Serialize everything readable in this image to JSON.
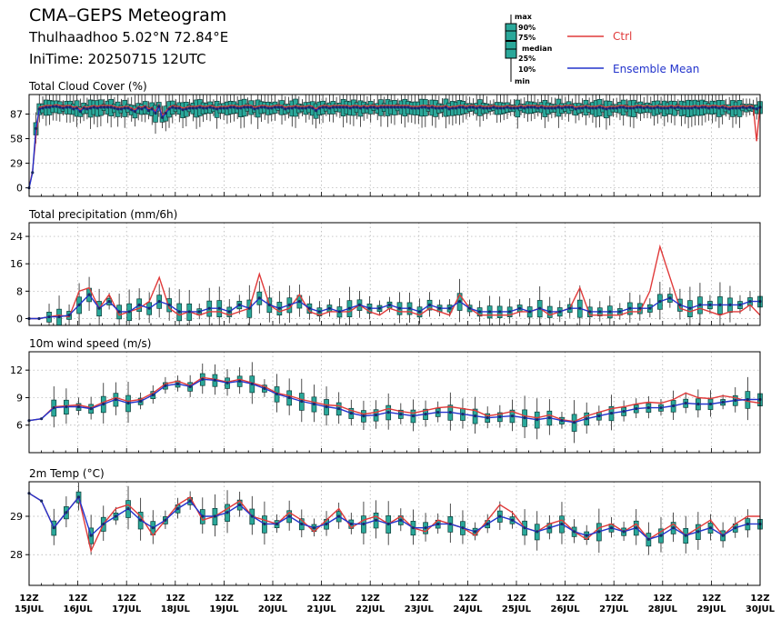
{
  "header": {
    "title": "CMA–GEPS Meteogram",
    "location": "Thulhaadhoo 5.02°N 72.84°E",
    "init_time": "IniTime: 20250715 12UTC"
  },
  "legend": {
    "box_labels": [
      "max",
      "90%",
      "75%",
      "median",
      "25%",
      "10%",
      "min"
    ],
    "ctrl_label": "Ctrl",
    "mean_label": "Ensemble Mean",
    "ctrl_color": "#e03a3a",
    "mean_color": "#2233cc",
    "box_color": "#2aa89a"
  },
  "x_axis": {
    "ticks": [
      {
        "time": "12Z",
        "date": "15JUL"
      },
      {
        "time": "12Z",
        "date": "16JUL"
      },
      {
        "time": "12Z",
        "date": "17JUL"
      },
      {
        "time": "12Z",
        "date": "18JUL"
      },
      {
        "time": "12Z",
        "date": "19JUL"
      },
      {
        "time": "12Z",
        "date": "20JUL"
      },
      {
        "time": "12Z",
        "date": "21JUL"
      },
      {
        "time": "12Z",
        "date": "22JUL"
      },
      {
        "time": "12Z",
        "date": "23JUL"
      },
      {
        "time": "12Z",
        "date": "24JUL"
      },
      {
        "time": "12Z",
        "date": "25JUL"
      },
      {
        "time": "12Z",
        "date": "26JUL"
      },
      {
        "time": "12Z",
        "date": "27JUL"
      },
      {
        "time": "12Z",
        "date": "28JUL"
      },
      {
        "time": "12Z",
        "date": "29JUL"
      },
      {
        "time": "12Z",
        "date": "30JUL"
      }
    ],
    "step_hours": 6
  },
  "chart_data": [
    {
      "type": "line",
      "title": "Total Cloud Cover (%)",
      "ylim": [
        -10,
        110
      ],
      "yticks": [
        0,
        29,
        58,
        87
      ],
      "grid": true,
      "ctrl": [
        0,
        20,
        60,
        95,
        96,
        97,
        97,
        97,
        98,
        97,
        96,
        97,
        97,
        95,
        96,
        92,
        96,
        95,
        96,
        97,
        96,
        97,
        97,
        97,
        97,
        96,
        95,
        95,
        96,
        96,
        94,
        92,
        96,
        95,
        97,
        93,
        95,
        90,
        98,
        85,
        90,
        95,
        97,
        96,
        96,
        94,
        95,
        96,
        96,
        96,
        97,
        96,
        96,
        97,
        96,
        95,
        96,
        96,
        96,
        97,
        97,
        96,
        96,
        97,
        97,
        97,
        95,
        96,
        97,
        97,
        96,
        96,
        97,
        97,
        97,
        95,
        96,
        96,
        97,
        96,
        96,
        96,
        97,
        96,
        93,
        96,
        97,
        97,
        96,
        97,
        97,
        97,
        97,
        97,
        96,
        97,
        97,
        96,
        97,
        96,
        97,
        97,
        96,
        97,
        97,
        97,
        97,
        97,
        97,
        97,
        97,
        97,
        96,
        96,
        96,
        97,
        97,
        96,
        97,
        96,
        96,
        96,
        97,
        95,
        96,
        96,
        97,
        97,
        96,
        97,
        97,
        96,
        97,
        96,
        96,
        96,
        97,
        96,
        96,
        96,
        97,
        96,
        96,
        96,
        97,
        96,
        97,
        97,
        97,
        96,
        97,
        96,
        96,
        96,
        96,
        97,
        96,
        97,
        97,
        97,
        95,
        96,
        96,
        97,
        96,
        96,
        96,
        97,
        96,
        95,
        96,
        96,
        96,
        97,
        97,
        96,
        96,
        96,
        97,
        97,
        96,
        97,
        96,
        96,
        97,
        96,
        96,
        96,
        97,
        96,
        97,
        96,
        96,
        96,
        96,
        97,
        96,
        97,
        97,
        96,
        97,
        97,
        96,
        97,
        96,
        95,
        96,
        96,
        96,
        97,
        96,
        97,
        96,
        55,
        97
      ],
      "mean": [
        0,
        18,
        70,
        93,
        94,
        95,
        95,
        96,
        96,
        95,
        94,
        95,
        95,
        93,
        94,
        90,
        94,
        93,
        94,
        95,
        94,
        95,
        95,
        95,
        95,
        94,
        93,
        93,
        94,
        94,
        92,
        90,
        94,
        93,
        95,
        91,
        93,
        88,
        96,
        83,
        88,
        93,
        95,
        94,
        94,
        92,
        93,
        94,
        94,
        94,
        95,
        94,
        94,
        95,
        94,
        93,
        94,
        94,
        94,
        95,
        95,
        94,
        94,
        95,
        95,
        95,
        93,
        94,
        95,
        95,
        94,
        94,
        95,
        95,
        95,
        93,
        94,
        94,
        95,
        94,
        94,
        94,
        95,
        94,
        91,
        94,
        95,
        95,
        94,
        95,
        95,
        95,
        95,
        95,
        94,
        95,
        95,
        94,
        95,
        94,
        95,
        95,
        94,
        95,
        95,
        95,
        95,
        95,
        95,
        95,
        95,
        95,
        94,
        94,
        94,
        95,
        95,
        94,
        95,
        94,
        94,
        94,
        95,
        93,
        94,
        94,
        95,
        95,
        94,
        95,
        95,
        94,
        95,
        94,
        94,
        94,
        95,
        94,
        94,
        94,
        95,
        94,
        94,
        94,
        95,
        94,
        95,
        95,
        95,
        94,
        95,
        94,
        94,
        94,
        94,
        95,
        94,
        95,
        95,
        95,
        93,
        94,
        94,
        95,
        94,
        94,
        94,
        95,
        94,
        93,
        94,
        94,
        94,
        95,
        95,
        94,
        94,
        94,
        95,
        95,
        94,
        95,
        94,
        94,
        95,
        94,
        94,
        94,
        95,
        94,
        95,
        94,
        94,
        94,
        94,
        95,
        94,
        95,
        95,
        94,
        95,
        95,
        94,
        95,
        94,
        93,
        94,
        94,
        94,
        95,
        94,
        95,
        94,
        93,
        95
      ]
    },
    {
      "type": "line",
      "title": "Total precipitation (mm/6h)",
      "ylim": [
        -2,
        28
      ],
      "yticks": [
        0,
        8,
        16,
        24
      ],
      "grid": true,
      "ctrl": [
        0,
        0,
        0.5,
        1,
        0.5,
        8,
        9,
        3,
        7,
        1,
        2,
        3,
        5,
        12,
        3,
        1,
        2,
        1,
        2,
        2,
        1,
        2,
        3,
        13,
        4,
        2,
        3,
        7,
        2,
        1,
        2,
        2,
        2,
        4,
        2,
        1,
        3,
        2,
        2,
        1,
        3,
        2,
        1,
        7,
        3,
        1,
        1,
        1,
        1,
        2,
        2,
        3,
        1,
        2,
        3,
        9,
        1,
        1,
        1,
        1,
        2,
        2,
        8,
        21,
        12,
        3,
        2,
        3,
        2,
        1,
        2,
        2,
        4,
        1
      ],
      "mean": [
        0,
        0,
        0.5,
        0.5,
        1,
        4,
        7,
        3,
        5,
        2,
        2,
        4,
        3,
        5,
        4,
        2,
        2,
        2,
        3,
        3,
        2,
        4,
        3,
        6,
        4,
        3,
        4,
        5,
        3,
        2,
        3,
        2,
        3,
        4,
        3,
        3,
        4,
        3,
        3,
        2,
        4,
        3,
        3,
        5,
        3,
        2,
        2,
        2,
        2,
        3,
        2,
        3,
        2,
        2,
        3,
        3,
        2,
        2,
        2,
        2,
        3,
        3,
        3,
        5,
        6,
        4,
        3,
        4,
        4,
        4,
        4,
        4,
        5,
        5
      ]
    },
    {
      "type": "line",
      "title": "10m wind speed (m/s)",
      "ylim": [
        3,
        14
      ],
      "yticks": [
        6,
        9,
        12
      ],
      "grid": true,
      "ctrl": [
        6.5,
        6.7,
        8.0,
        8.1,
        8.2,
        7.9,
        8.5,
        9.0,
        8.6,
        8.8,
        9.5,
        10.5,
        10.8,
        10.3,
        11.2,
        11.0,
        10.7,
        11.0,
        10.6,
        10.2,
        9.5,
        9.2,
        8.8,
        8.5,
        8.2,
        8.1,
        7.6,
        7.2,
        7.4,
        7.8,
        7.5,
        7.3,
        7.6,
        7.9,
        8.0,
        7.8,
        7.6,
        7.0,
        7.2,
        7.5,
        7.0,
        6.8,
        7.1,
        6.6,
        6.4,
        7.0,
        7.4,
        7.8,
        8.0,
        8.3,
        8.5,
        8.4,
        8.8,
        9.5,
        9.0,
        8.9,
        9.2,
        9.0,
        8.6,
        8.4
      ],
      "mean": [
        6.5,
        6.7,
        7.9,
        8.0,
        8.0,
        7.8,
        8.3,
        8.8,
        8.4,
        8.6,
        9.3,
        10.3,
        10.5,
        10.2,
        11.0,
        10.9,
        10.6,
        10.8,
        10.5,
        10.0,
        9.4,
        9.0,
        8.6,
        8.3,
        8.0,
        7.8,
        7.3,
        7.0,
        7.1,
        7.4,
        7.2,
        7.0,
        7.2,
        7.4,
        7.4,
        7.2,
        7.0,
        6.8,
        6.9,
        7.0,
        6.8,
        6.6,
        6.8,
        6.5,
        6.3,
        6.7,
        7.0,
        7.3,
        7.5,
        7.8,
        7.9,
        7.9,
        8.1,
        8.4,
        8.3,
        8.3,
        8.5,
        8.7,
        8.8,
        8.8
      ]
    },
    {
      "type": "line",
      "title": "2m Temp (°C)",
      "ylim": [
        27.2,
        29.9
      ],
      "yticks": [
        28,
        29
      ],
      "grid": true,
      "ctrl": [
        29.6,
        29.4,
        28.7,
        29.1,
        29.5,
        28.1,
        28.8,
        29.2,
        29.3,
        29.0,
        28.5,
        28.9,
        29.3,
        29.5,
        28.9,
        29.0,
        29.2,
        29.4,
        29.0,
        28.9,
        28.8,
        29.1,
        28.9,
        28.6,
        28.9,
        29.2,
        28.7,
        28.9,
        29.0,
        28.8,
        29.0,
        28.7,
        28.6,
        28.9,
        28.8,
        28.7,
        28.5,
        28.9,
        29.3,
        29.1,
        28.7,
        28.6,
        28.8,
        28.9,
        28.6,
        28.4,
        28.7,
        28.8,
        28.6,
        28.8,
        28.4,
        28.6,
        28.8,
        28.5,
        28.7,
        28.9,
        28.5,
        28.8,
        29.0,
        29.0
      ],
      "mean": [
        29.6,
        29.4,
        28.7,
        29.1,
        29.5,
        28.5,
        28.8,
        29.0,
        29.2,
        28.9,
        28.7,
        28.9,
        29.2,
        29.4,
        29.0,
        29.0,
        29.1,
        29.3,
        29.0,
        28.8,
        28.8,
        29.0,
        28.8,
        28.7,
        28.8,
        29.0,
        28.8,
        28.8,
        28.9,
        28.8,
        28.9,
        28.7,
        28.7,
        28.8,
        28.8,
        28.7,
        28.6,
        28.8,
        29.0,
        28.9,
        28.7,
        28.6,
        28.7,
        28.8,
        28.6,
        28.5,
        28.6,
        28.7,
        28.6,
        28.7,
        28.4,
        28.5,
        28.7,
        28.5,
        28.6,
        28.7,
        28.5,
        28.7,
        28.8,
        28.8
      ]
    }
  ]
}
